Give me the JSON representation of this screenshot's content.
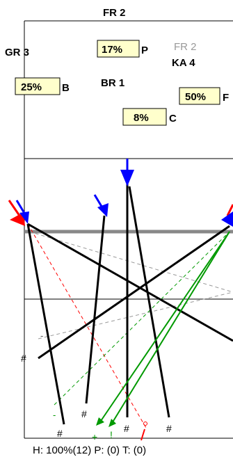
{
  "colors": {
    "ink": "#000000",
    "label_box_fill": "#ffffcc",
    "muted_label": "#999999",
    "marker_red": "#ff0000",
    "marker_blue": "#0000ff",
    "track_green": "#009900",
    "track_gray": "#888888",
    "guide_line": "#000000"
  },
  "labels": {
    "top_fr": "FR  2",
    "gr": "GR  3",
    "p_pct": "17%",
    "p_letter": "P",
    "fr_muted": "FR  2",
    "ka": "KA  4",
    "b_pct": "25%",
    "b_letter": "B",
    "br": "BR  1",
    "f_pct": "50%",
    "f_letter": "F",
    "c_pct": "8%",
    "c_letter": "C"
  },
  "bottom_marks": {
    "hash": "#",
    "dash": "-",
    "plus": "+",
    "bang": "!"
  },
  "status": {
    "text": "H: 100%(12)  P: (0)  T: (0)"
  }
}
